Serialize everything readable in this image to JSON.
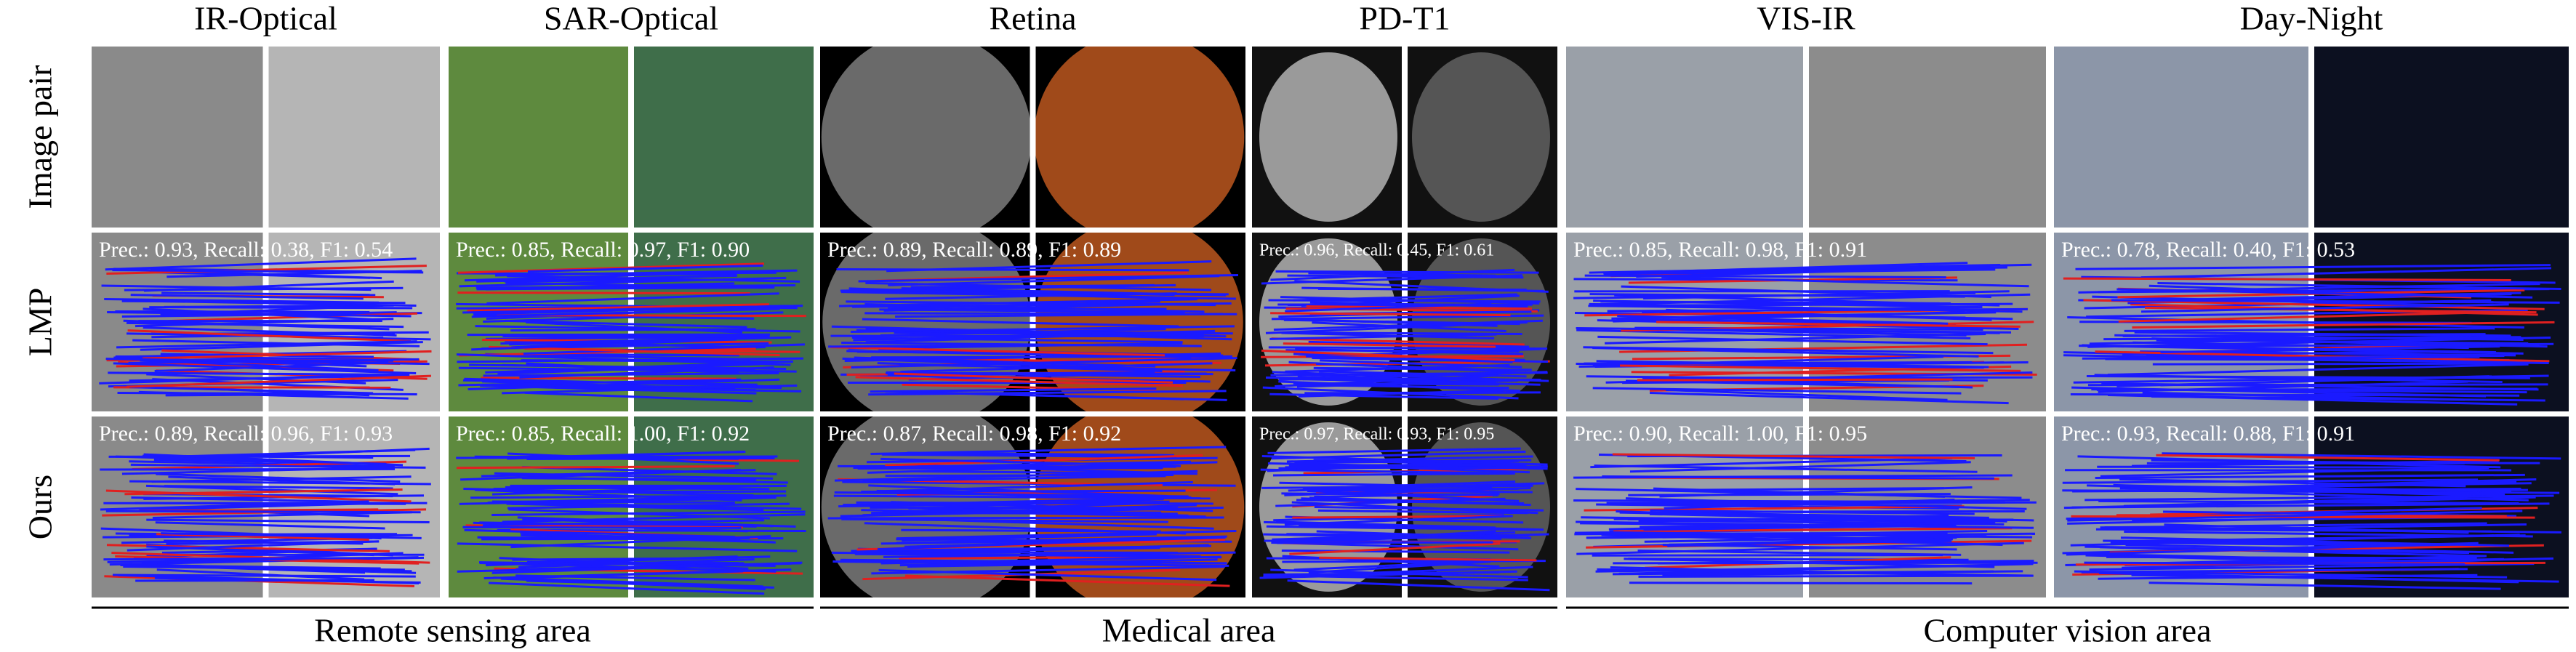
{
  "columns": [
    {
      "title": "IR-Optical",
      "results": [
        "Prec.: 0.93, Recall: 0.38, F1: 0.54",
        "Prec.: 0.89, Recall: 0.96, F1: 0.93"
      ]
    },
    {
      "title": "SAR-Optical",
      "results": [
        "Prec.: 0.85, Recall: 0.97, F1: 0.90",
        "Prec.: 0.85, Recall: 1.00, F1: 0.92"
      ]
    },
    {
      "title": "Retina",
      "results": [
        "Prec.: 0.89, Recall: 0.89, F1: 0.89",
        "Prec.: 0.87, Recall: 0.98, F1: 0.92"
      ]
    },
    {
      "title": "PD-T1",
      "results": [
        "Prec.: 0.96, Recall: 0.45, F1: 0.61",
        "Prec.: 0.97, Recall: 0.93, F1: 0.95"
      ]
    },
    {
      "title": "VIS-IR",
      "results": [
        "Prec.: 0.85, Recall: 0.98, F1: 0.91",
        "Prec.: 0.90, Recall: 1.00, F1: 0.95"
      ]
    },
    {
      "title": "Day-Night",
      "results": [
        "Prec.: 0.78, Recall: 0.40, F1: 0.53",
        "Prec.: 0.93, Recall: 0.88, F1: 0.91"
      ]
    }
  ],
  "rows": [
    "Image pair",
    "LMP",
    "Ours"
  ],
  "groups": [
    "Remote sensing area",
    "Medical area",
    "Computer vision area"
  ]
}
